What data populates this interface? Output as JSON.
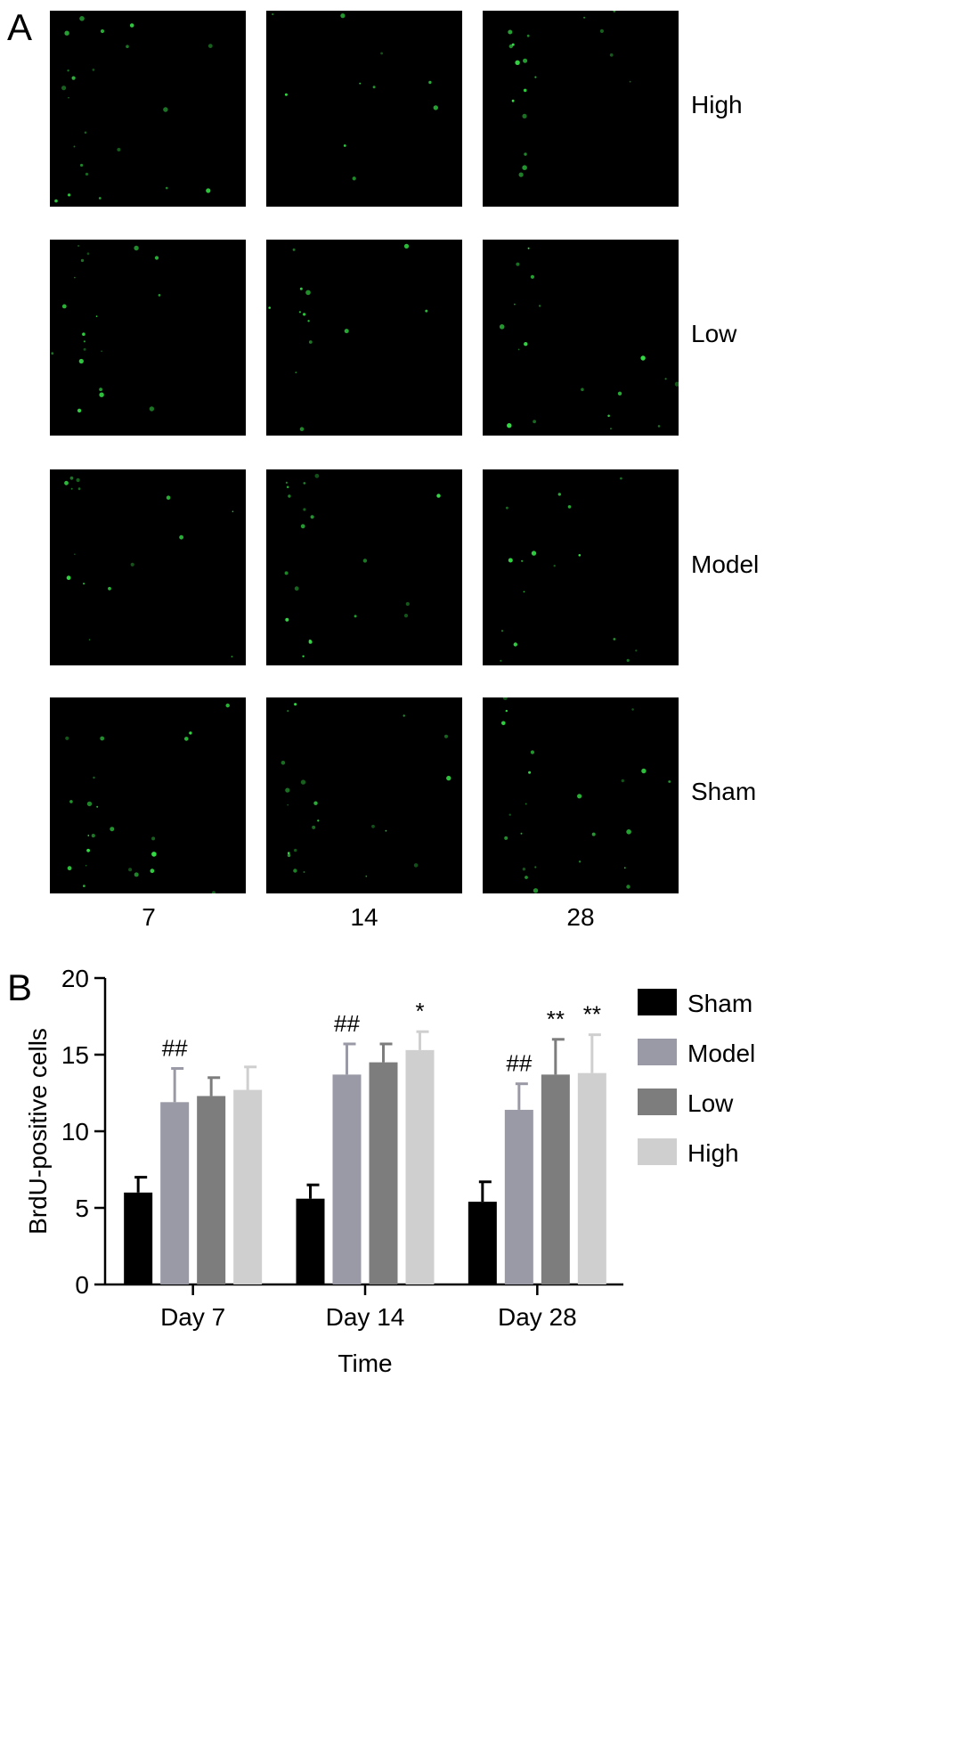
{
  "panel_a": {
    "letter": "A",
    "rows": [
      "High",
      "Low",
      "Model",
      "Sham"
    ],
    "columns": [
      "7",
      "14",
      "28"
    ],
    "dot_color": "#33dd44",
    "background_color": "#000000"
  },
  "panel_b": {
    "letter": "B"
  },
  "chart_data": {
    "type": "bar",
    "categories": [
      "Day 7",
      "Day 14",
      "Day 28"
    ],
    "series": [
      {
        "name": "Sham",
        "color": "#000000",
        "values": [
          6.0,
          5.6,
          5.4
        ],
        "errors": [
          1.0,
          0.9,
          1.3
        ],
        "annotations": [
          "",
          "",
          ""
        ]
      },
      {
        "name": "Model",
        "color": "#9a9aa6",
        "values": [
          11.9,
          13.7,
          11.4
        ],
        "errors": [
          2.2,
          2.0,
          1.7
        ],
        "annotations": [
          "##",
          "##",
          "##"
        ]
      },
      {
        "name": "Low",
        "color": "#7d7d7d",
        "values": [
          12.3,
          14.5,
          13.7
        ],
        "errors": [
          1.2,
          1.2,
          2.3
        ],
        "annotations": [
          "",
          "",
          "**"
        ]
      },
      {
        "name": "High",
        "color": "#cfcfcf",
        "values": [
          12.7,
          15.3,
          13.8
        ],
        "errors": [
          1.5,
          1.2,
          2.5
        ],
        "annotations": [
          "",
          "*",
          "**"
        ]
      }
    ],
    "xlabel": "Time",
    "ylabel": "BrdU-positive cells",
    "ylim": [
      0,
      20
    ],
    "yticks": [
      0,
      5,
      10,
      15,
      20
    ],
    "legend_position": "right",
    "grid": false
  }
}
